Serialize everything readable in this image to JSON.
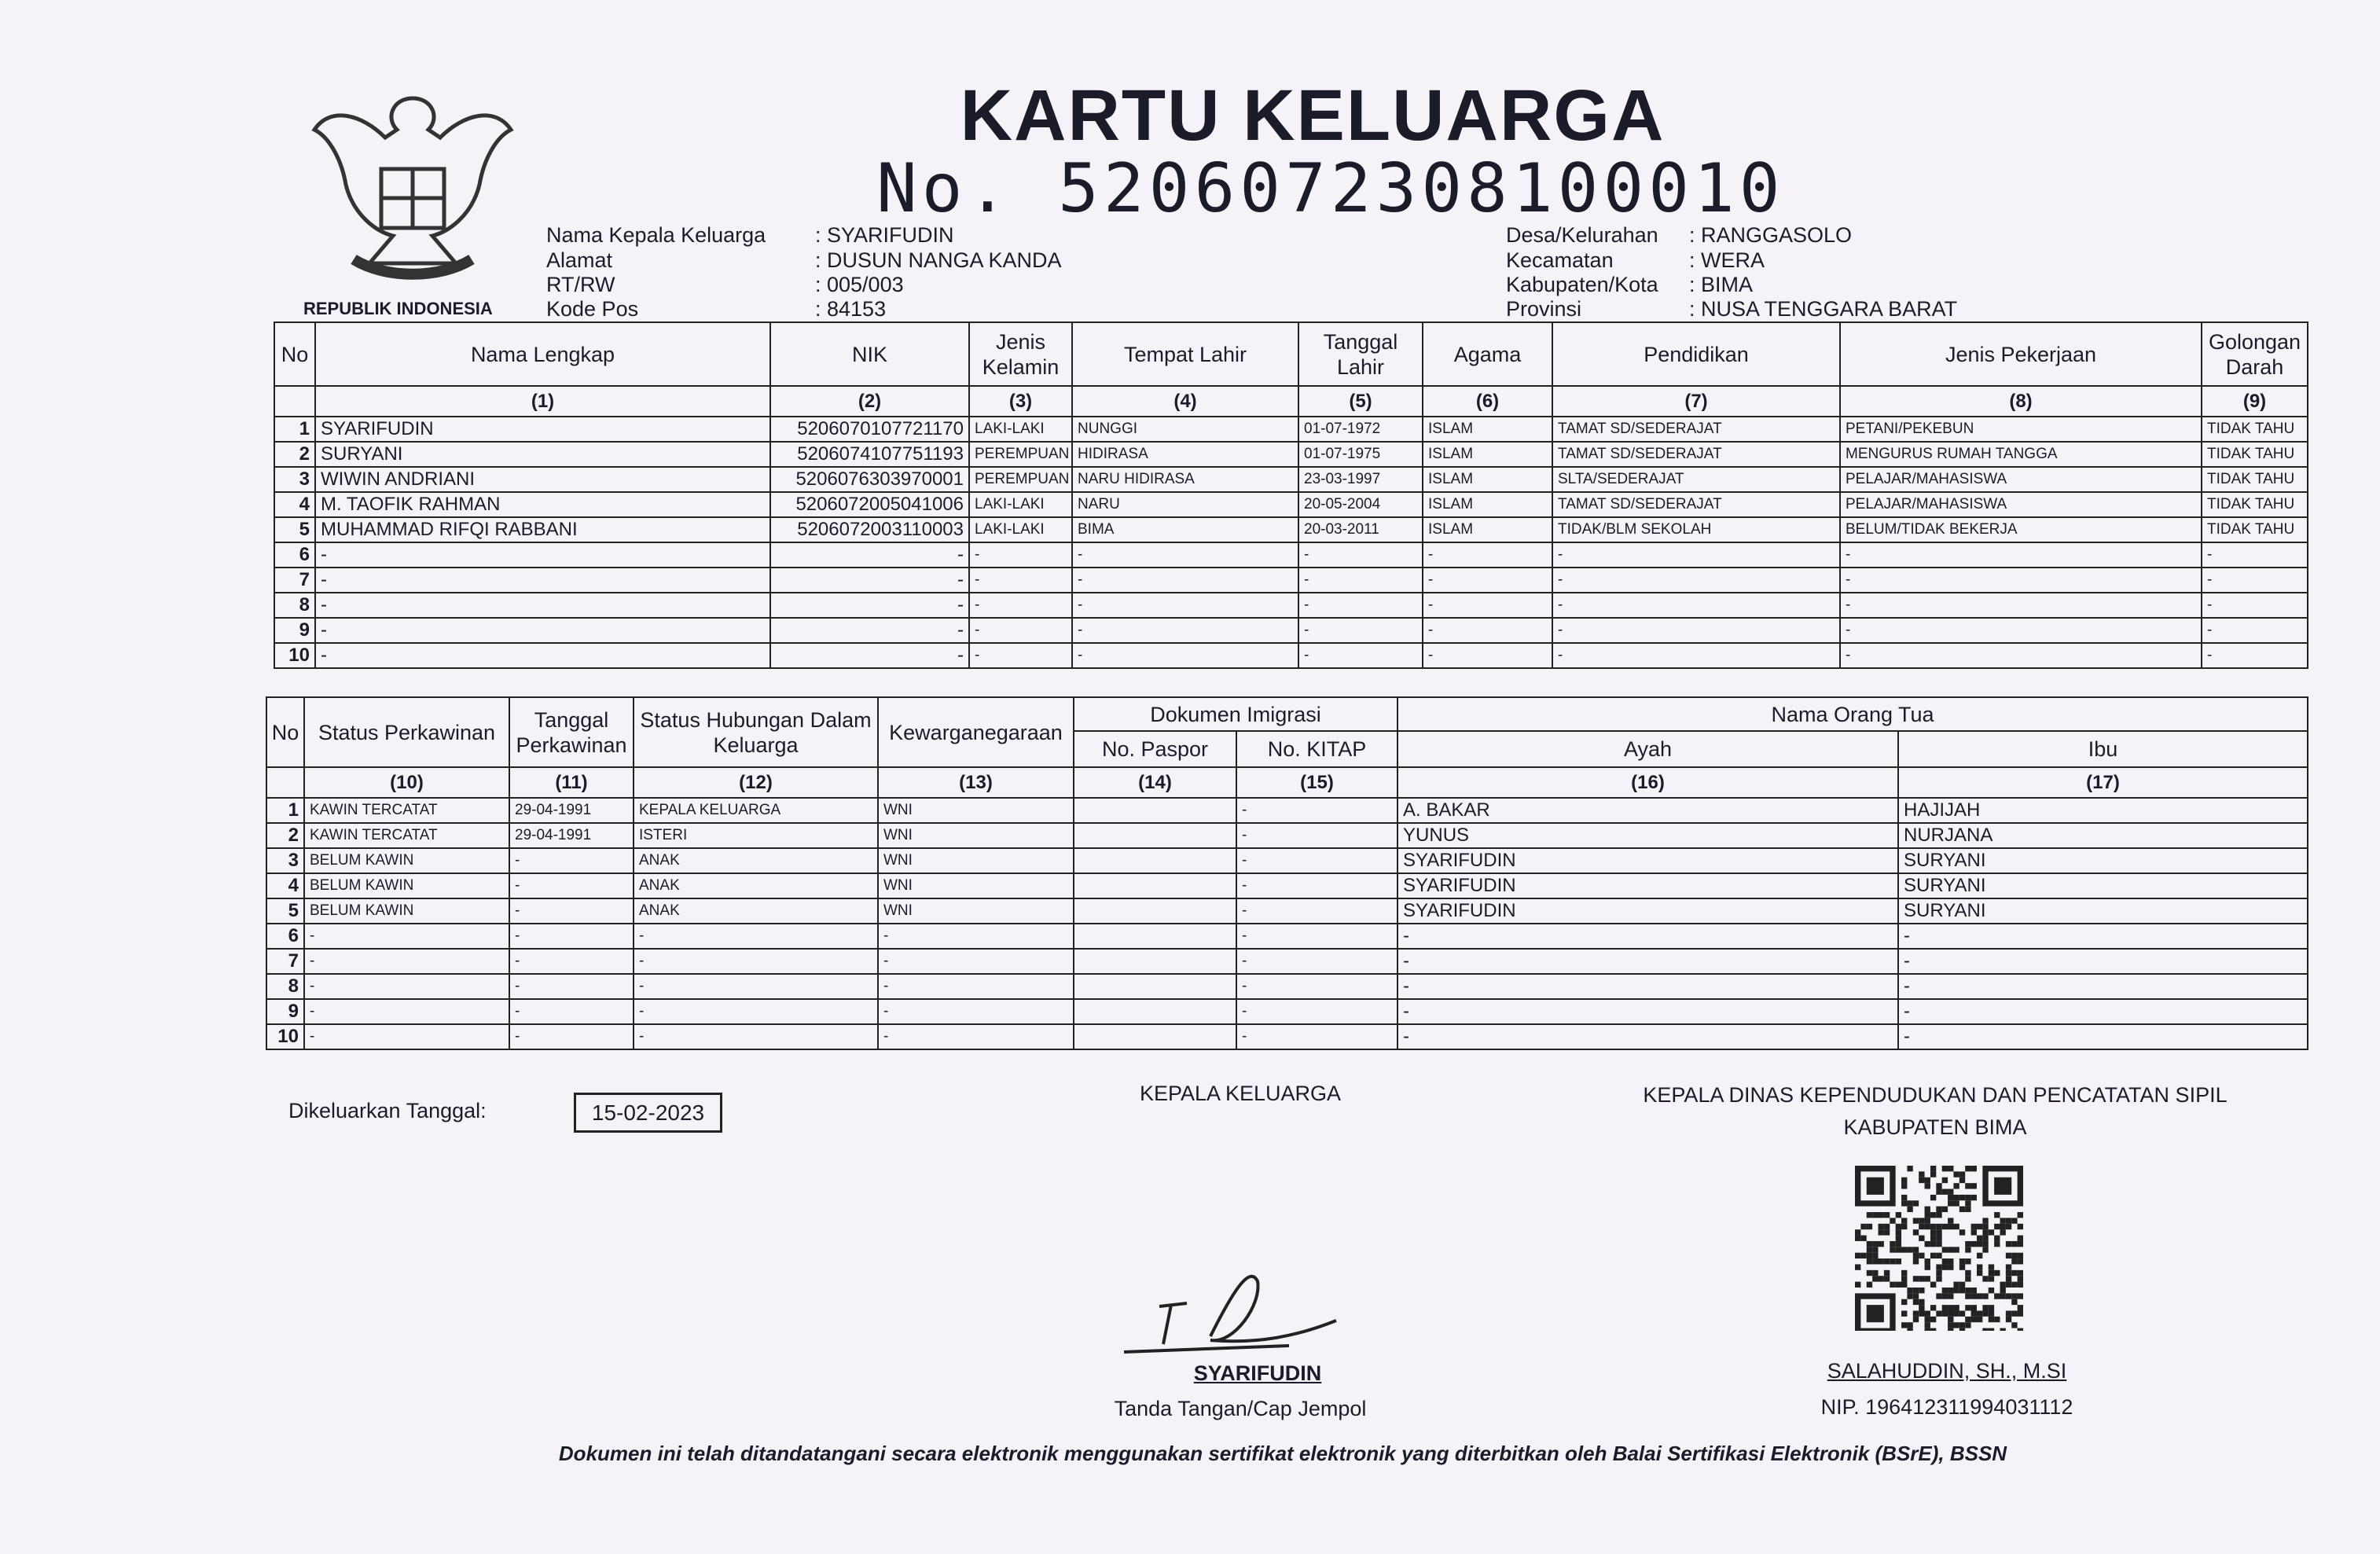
{
  "header": {
    "emblem_caption": "REPUBLIK INDONESIA",
    "title": "KARTU KELUARGA",
    "number_label": "No.",
    "number": "5206072308100010"
  },
  "info_left": [
    {
      "label": "Nama Kepala Keluarga",
      "value": ": SYARIFUDIN"
    },
    {
      "label": "Alamat",
      "value": ": DUSUN NANGA KANDA"
    },
    {
      "label": "RT/RW",
      "value": ": 005/003"
    },
    {
      "label": "Kode Pos",
      "value": ": 84153"
    }
  ],
  "info_right": [
    {
      "label": "Desa/Kelurahan",
      "value": ": RANGGASOLO"
    },
    {
      "label": "Kecamatan",
      "value": ": WERA"
    },
    {
      "label": "Kabupaten/Kota",
      "value": ": BIMA"
    },
    {
      "label": "Provinsi",
      "value": ": NUSA TENGGARA BARAT"
    }
  ],
  "table1": {
    "headers": [
      {
        "label": "No",
        "index": null
      },
      {
        "label": "Nama Lengkap",
        "index": "(1)"
      },
      {
        "label": "NIK",
        "index": "(2)"
      },
      {
        "label": "Jenis Kelamin",
        "index": "(3)"
      },
      {
        "label": "Tempat Lahir",
        "index": "(4)"
      },
      {
        "label": "Tanggal Lahir",
        "index": "(5)"
      },
      {
        "label": "Agama",
        "index": "(6)"
      },
      {
        "label": "Pendidikan",
        "index": "(7)"
      },
      {
        "label": "Jenis Pekerjaan",
        "index": "(8)"
      },
      {
        "label": "Golongan Darah",
        "index": "(9)"
      }
    ],
    "rows": [
      [
        "1",
        "SYARIFUDIN",
        "5206070107721170",
        "LAKI-LAKI",
        "NUNGGI",
        "01-07-1972",
        "ISLAM",
        "TAMAT SD/SEDERAJAT",
        "PETANI/PEKEBUN",
        "TIDAK TAHU"
      ],
      [
        "2",
        "SURYANI",
        "5206074107751193",
        "PEREMPUAN",
        "HIDIRASA",
        "01-07-1975",
        "ISLAM",
        "TAMAT SD/SEDERAJAT",
        "MENGURUS RUMAH TANGGA",
        "TIDAK TAHU"
      ],
      [
        "3",
        "WIWIN ANDRIANI",
        "5206076303970001",
        "PEREMPUAN",
        "NARU HIDIRASA",
        "23-03-1997",
        "ISLAM",
        "SLTA/SEDERAJAT",
        "PELAJAR/MAHASISWA",
        "TIDAK TAHU"
      ],
      [
        "4",
        "M. TAOFIK RAHMAN",
        "5206072005041006",
        "LAKI-LAKI",
        "NARU",
        "20-05-2004",
        "ISLAM",
        "TAMAT SD/SEDERAJAT",
        "PELAJAR/MAHASISWA",
        "TIDAK TAHU"
      ],
      [
        "5",
        "MUHAMMAD RIFQI RABBANI",
        "5206072003110003",
        "LAKI-LAKI",
        "BIMA",
        "20-03-2011",
        "ISLAM",
        "TIDAK/BLM SEKOLAH",
        "BELUM/TIDAK BEKERJA",
        "TIDAK TAHU"
      ],
      [
        "6",
        "-",
        "-",
        "-",
        "-",
        "-",
        "-",
        "-",
        "-",
        "-"
      ],
      [
        "7",
        "-",
        "-",
        "-",
        "-",
        "-",
        "-",
        "-",
        "-",
        "-"
      ],
      [
        "8",
        "-",
        "-",
        "-",
        "-",
        "-",
        "-",
        "-",
        "-",
        "-"
      ],
      [
        "9",
        "-",
        "-",
        "-",
        "-",
        "-",
        "-",
        "-",
        "-",
        "-"
      ],
      [
        "10",
        "-",
        "-",
        "-",
        "-",
        "-",
        "-",
        "-",
        "-",
        "-"
      ]
    ]
  },
  "table2": {
    "groups": [
      "Dokumen Imigrasi",
      "Nama Orang Tua"
    ],
    "headers": [
      {
        "label": "No",
        "index": null
      },
      {
        "label": "Status Perkawinan",
        "index": "(10)"
      },
      {
        "label": "Tanggal Perkawinan",
        "index": "(11)"
      },
      {
        "label": "Status Hubungan Dalam Keluarga",
        "index": "(12)"
      },
      {
        "label": "Kewarganegaraan",
        "index": "(13)"
      },
      {
        "label": "No. Paspor",
        "index": "(14)"
      },
      {
        "label": "No. KITAP",
        "index": "(15)"
      },
      {
        "label": "Ayah",
        "index": "(16)"
      },
      {
        "label": "Ibu",
        "index": "(17)"
      }
    ],
    "rows": [
      [
        "1",
        "KAWIN TERCATAT",
        "29-04-1991",
        "KEPALA KELUARGA",
        "WNI",
        null,
        "-",
        "A. BAKAR",
        "HAJIJAH"
      ],
      [
        "2",
        "KAWIN TERCATAT",
        "29-04-1991",
        "ISTERI",
        "WNI",
        null,
        "-",
        "YUNUS",
        "NURJANA"
      ],
      [
        "3",
        "BELUM KAWIN",
        "-",
        "ANAK",
        "WNI",
        null,
        "-",
        "SYARIFUDIN",
        "SURYANI"
      ],
      [
        "4",
        "BELUM KAWIN",
        "-",
        "ANAK",
        "WNI",
        null,
        "-",
        "SYARIFUDIN",
        "SURYANI"
      ],
      [
        "5",
        "BELUM KAWIN",
        "-",
        "ANAK",
        "WNI",
        null,
        "-",
        "SYARIFUDIN",
        "SURYANI"
      ],
      [
        "6",
        "-",
        "-",
        "-",
        "-",
        null,
        "-",
        "-",
        "-"
      ],
      [
        "7",
        "-",
        "-",
        "-",
        "-",
        null,
        "-",
        "-",
        "-"
      ],
      [
        "8",
        "-",
        "-",
        "-",
        "-",
        null,
        "-",
        "-",
        "-"
      ],
      [
        "9",
        "-",
        "-",
        "-",
        "-",
        null,
        "-",
        "-",
        "-"
      ],
      [
        "10",
        "-",
        "-",
        "-",
        "-",
        null,
        "-",
        "-",
        "-"
      ]
    ]
  },
  "footer": {
    "issued_label": "Dikeluarkan Tanggal:",
    "issued_date": "15-02-2023",
    "head_title": "KEPALA KELUARGA",
    "head_name": "SYARIFUDIN",
    "head_caption": "Tanda Tangan/Cap Jempol",
    "office_title": "KEPALA DINAS KEPENDUDUKAN DAN PENCATATAN SIPIL",
    "office_region": "KABUPATEN BIMA",
    "official_name": "SALAHUDDIN, SH., M.SI",
    "official_nip": "NIP. 196412311994031112",
    "disclaimer": "Dokumen ini telah ditandatangani secara elektronik menggunakan sertifikat elektronik yang diterbitkan oleh Balai Sertifikasi Elektronik (BSrE), BSSN"
  }
}
